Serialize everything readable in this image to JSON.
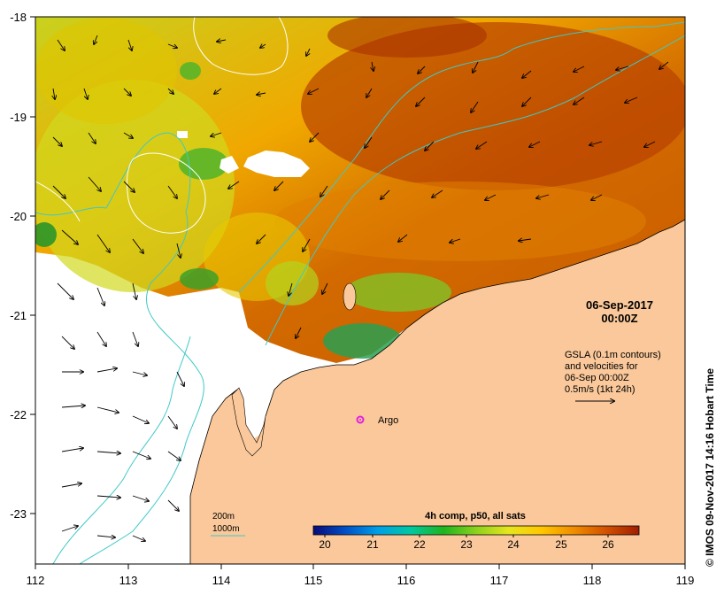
{
  "map": {
    "date_title": "06-Sep-2017",
    "time_title": "00:00Z",
    "gsla_lines": [
      "GSLA (0.1m contours)",
      "and velocities for",
      "06-Sep 00:00Z",
      "0.5m/s (1kt 24h)"
    ],
    "argo_label": "Argo",
    "credit": "©  IMOS 09-Nov-2017 14:16 Hobart Time",
    "legend": {
      "line_200": "200m",
      "line_1000": "1000m"
    },
    "colorbar": {
      "title": "4h comp, p50, all sats",
      "ticks": [
        "20",
        "21",
        "22",
        "23",
        "24",
        "25",
        "26"
      ],
      "colors": [
        "#0a0a78",
        "#0050c8",
        "#00a0e6",
        "#00c8a0",
        "#1eb41e",
        "#8cd21e",
        "#e6e61e",
        "#ffc800",
        "#f08c00",
        "#d25000",
        "#a01e00"
      ]
    },
    "axes": {
      "x_ticks": [
        "112",
        "113",
        "114",
        "115",
        "116",
        "117",
        "118",
        "119"
      ],
      "y_ticks": [
        "-18",
        "-19",
        "-20",
        "-21",
        "-22",
        "-23"
      ]
    },
    "palette": {
      "land": "#fac89a",
      "sst_warm": "#d26a00",
      "sst_hot": "#b84200",
      "sst_mid": "#f09a00",
      "sst_yellow": "#e8c800",
      "sst_lime": "#bedc1e",
      "sst_green": "#50b42a",
      "isobath_200": "#000000",
      "isobath_1000": "#40c8c8",
      "argo_marker": "#e020e0"
    }
  }
}
